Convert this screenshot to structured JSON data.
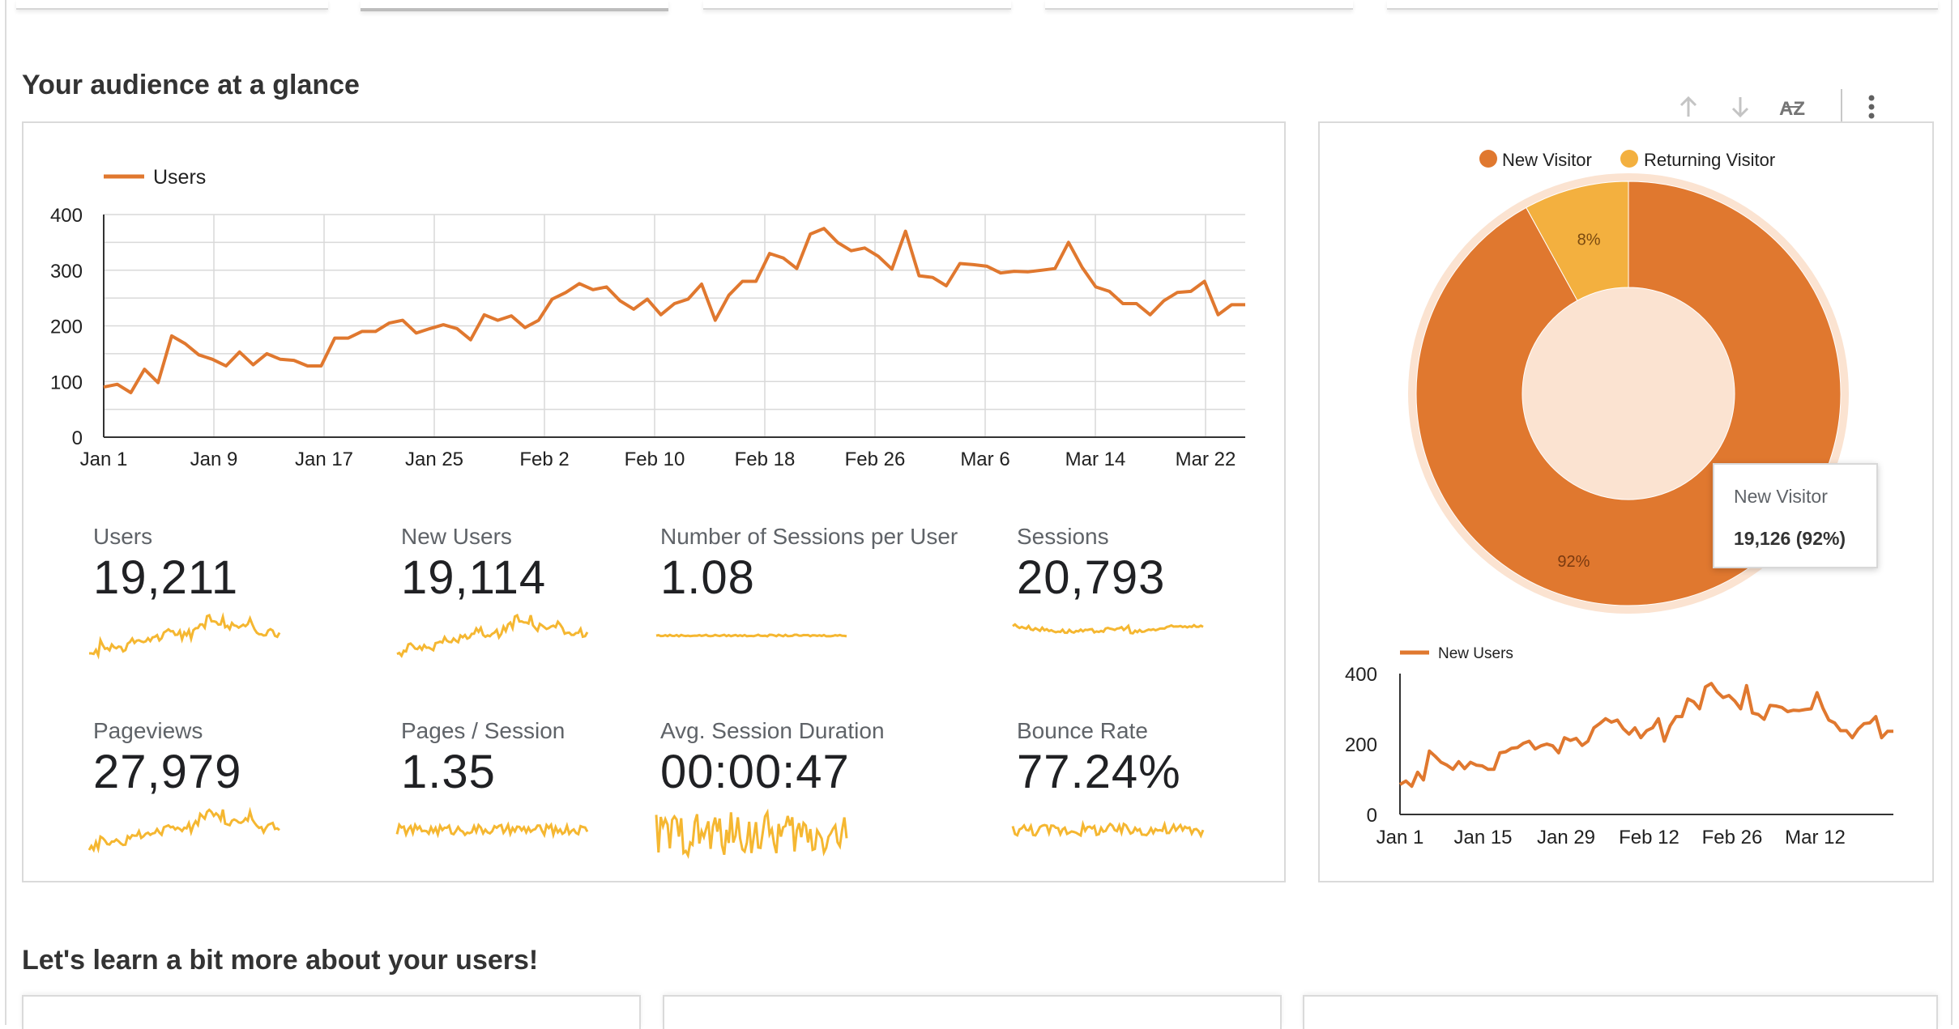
{
  "colors": {
    "primary": "#e0782f",
    "secondary": "#f3b03f",
    "spark": "#f5b731"
  },
  "sections": {
    "audience_title": "Your audience at a glance",
    "learn_title": "Let's learn a bit more about your users!"
  },
  "toolbar": {
    "sort_up_icon": "arrow-up-icon",
    "sort_down_icon": "arrow-down-icon",
    "sort_az_icon": "az-sort-icon",
    "az_label": "AZ",
    "more_icon": "kebab-menu-icon"
  },
  "kpis": [
    {
      "label": "Users",
      "value": "19,211"
    },
    {
      "label": "New Users",
      "value": "19,114"
    },
    {
      "label": "Number of Sessions per User",
      "value": "1.08"
    },
    {
      "label": "Sessions",
      "value": "20,793"
    },
    {
      "label": "Pageviews",
      "value": "27,979"
    },
    {
      "label": "Pages / Session",
      "value": "1.35"
    },
    {
      "label": "Avg. Session Duration",
      "value": "00:00:47"
    },
    {
      "label": "Bounce Rate",
      "value": "77.24%"
    }
  ],
  "tooltip": {
    "title": "New Visitor",
    "value": "19,126 (92%)"
  },
  "chart_data": [
    {
      "type": "line",
      "legend": [
        "Users"
      ],
      "legend_position": "top-left",
      "grid": true,
      "ylim": [
        0,
        400
      ],
      "yticks": [
        "0",
        "100",
        "200",
        "300",
        "400"
      ],
      "xticks": [
        "Jan 1",
        "Jan 9",
        "Jan 17",
        "Jan 25",
        "Feb 2",
        "Feb 10",
        "Feb 18",
        "Feb 26",
        "Mar 6",
        "Mar 14",
        "Mar 22"
      ],
      "series": [
        {
          "name": "Users",
          "values": [
            90,
            95,
            80,
            122,
            98,
            182,
            168,
            148,
            140,
            128,
            153,
            130,
            150,
            140,
            138,
            128,
            128,
            178,
            178,
            190,
            190,
            205,
            210,
            187,
            195,
            202,
            195,
            175,
            220,
            210,
            218,
            197,
            210,
            248,
            260,
            276,
            265,
            270,
            245,
            230,
            248,
            220,
            240,
            248,
            275,
            210,
            255,
            280,
            280,
            330,
            322,
            303,
            365,
            375,
            350,
            335,
            340,
            325,
            302,
            370,
            290,
            287,
            272,
            312,
            310,
            307,
            295,
            298,
            297,
            300,
            303,
            350,
            305,
            270,
            262,
            240,
            240,
            220,
            245,
            260,
            262,
            280,
            220,
            238,
            238
          ]
        }
      ]
    },
    {
      "type": "pie",
      "legend": [
        "New Visitor",
        "Returning Visitor"
      ],
      "legend_position": "top",
      "slices": [
        {
          "name": "New Visitor",
          "value": 92,
          "label": "92%"
        },
        {
          "name": "Returning Visitor",
          "value": 8,
          "label": "8%"
        }
      ]
    },
    {
      "type": "line",
      "legend": [
        "New Users"
      ],
      "legend_position": "top-left",
      "grid": false,
      "ylim": [
        0,
        400
      ],
      "yticks": [
        "0",
        "200",
        "400"
      ],
      "xticks": [
        "Jan 1",
        "Jan 15",
        "Jan 29",
        "Feb 12",
        "Feb 26",
        "Mar 12"
      ],
      "series": [
        {
          "name": "New Users",
          "values": [
            85,
            95,
            80,
            120,
            98,
            180,
            165,
            148,
            140,
            128,
            150,
            130,
            148,
            140,
            138,
            128,
            128,
            175,
            178,
            188,
            190,
            202,
            208,
            186,
            195,
            200,
            195,
            175,
            218,
            210,
            216,
            196,
            208,
            246,
            258,
            272,
            262,
            268,
            244,
            228,
            246,
            218,
            238,
            246,
            272,
            208,
            252,
            278,
            278,
            328,
            320,
            300,
            362,
            372,
            348,
            332,
            338,
            322,
            300,
            366,
            288,
            284,
            270,
            310,
            308,
            304,
            292,
            296,
            295,
            298,
            300,
            346,
            302,
            268,
            260,
            238,
            238,
            218,
            242,
            258,
            260,
            278,
            218,
            236,
            236
          ]
        }
      ]
    }
  ]
}
